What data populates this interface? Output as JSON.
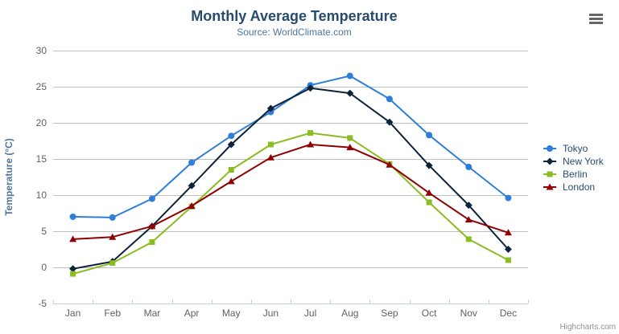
{
  "chart_data": {
    "type": "line",
    "title": "Monthly Average Temperature",
    "subtitle": "Source: WorldClimate.com",
    "xlabel": "",
    "ylabel": "Temperature (°C)",
    "ylim": [
      -5,
      30
    ],
    "ytick_interval": 5,
    "grid": true,
    "legend_position": "right",
    "categories": [
      "Jan",
      "Feb",
      "Mar",
      "Apr",
      "May",
      "Jun",
      "Jul",
      "Aug",
      "Sep",
      "Oct",
      "Nov",
      "Dec"
    ],
    "series": [
      {
        "name": "Tokyo",
        "color": "#2f7ed8",
        "marker": "circle",
        "values": [
          7.0,
          6.9,
          9.5,
          14.5,
          18.2,
          21.5,
          25.2,
          26.5,
          23.3,
          18.3,
          13.9,
          9.6
        ]
      },
      {
        "name": "New York",
        "color": "#0d233a",
        "marker": "diamond",
        "values": [
          -0.2,
          0.8,
          5.7,
          11.3,
          17.0,
          22.0,
          24.8,
          24.1,
          20.1,
          14.1,
          8.6,
          2.5
        ]
      },
      {
        "name": "Berlin",
        "color": "#8bbc21",
        "marker": "square",
        "values": [
          -0.9,
          0.6,
          3.5,
          8.4,
          13.5,
          17.0,
          18.6,
          17.9,
          14.3,
          9.0,
          3.9,
          1.0
        ]
      },
      {
        "name": "London",
        "color": "#910000",
        "marker": "triangle",
        "values": [
          3.9,
          4.2,
          5.7,
          8.5,
          11.9,
          15.2,
          17.0,
          16.6,
          14.2,
          10.3,
          6.6,
          4.8
        ]
      }
    ]
  },
  "icons": {
    "context_menu": "hamburger-icon"
  },
  "credits": "Highcharts.com",
  "colors": {
    "title": "#274b6d",
    "subtitle": "#4d759e",
    "axis_title": "#4d759e",
    "axis_label": "#606060",
    "grid": "#c0c0c0",
    "axis_line": "#c0d0e0",
    "legend_text": "#274b6d",
    "credits": "#909090"
  }
}
